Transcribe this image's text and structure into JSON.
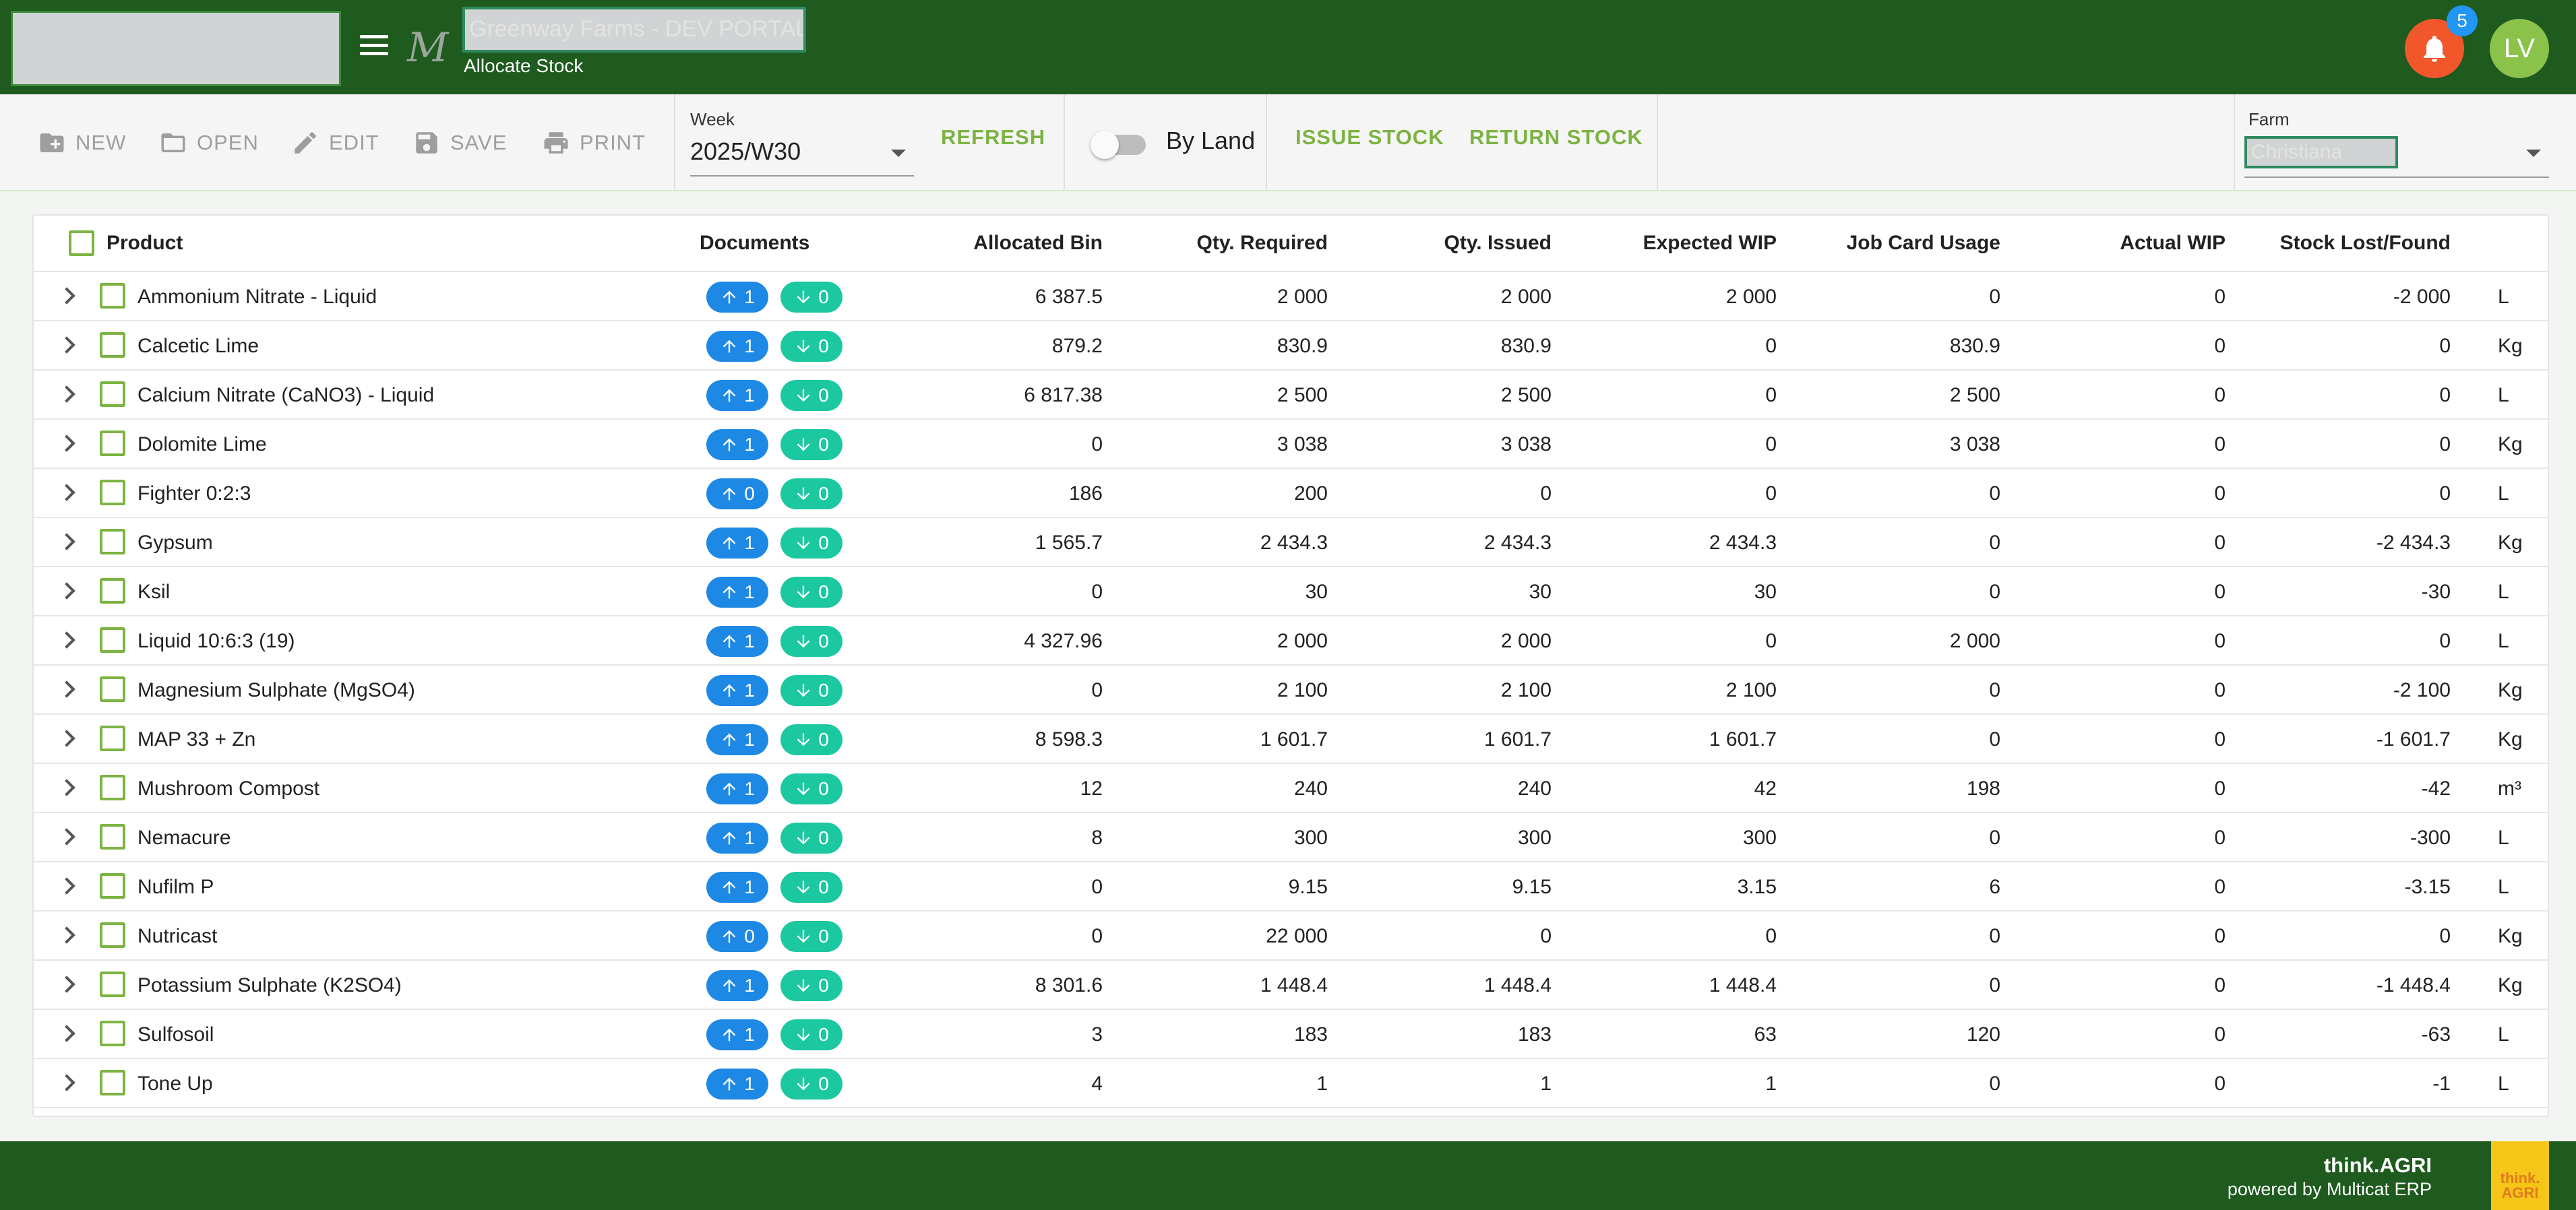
{
  "header": {
    "portal_title": "Greenway Farms - DEV PORTAL",
    "page_subtitle": "Allocate Stock",
    "notification_count": "5",
    "avatar_initials": "LV",
    "m_logo": "M"
  },
  "toolbar": {
    "new_label": "NEW",
    "open_label": "OPEN",
    "edit_label": "EDIT",
    "save_label": "SAVE",
    "print_label": "PRINT",
    "week_label": "Week",
    "week_value": "2025/W30",
    "refresh_label": "REFRESH",
    "by_land_label": "By Land",
    "issue_stock_label": "ISSUE STOCK",
    "return_stock_label": "RETURN STOCK",
    "farm_label": "Farm",
    "farm_value": "Christiana"
  },
  "table": {
    "columns": {
      "product": "Product",
      "documents": "Documents",
      "allocated_bin": "Allocated Bin",
      "qty_required": "Qty. Required",
      "qty_issued": "Qty. Issued",
      "expected_wip": "Expected WIP",
      "job_card_usage": "Job Card Usage",
      "actual_wip": "Actual WIP",
      "stock_lost_found": "Stock Lost/Found"
    },
    "rows": [
      {
        "product": "Ammonium Nitrate - Liquid",
        "up": "1",
        "down": "0",
        "allocated_bin": "6 387.5",
        "qty_required": "2 000",
        "qty_issued": "2 000",
        "expected_wip": "2 000",
        "job_card_usage": "0",
        "actual_wip": "0",
        "stock_lost_found": "-2 000",
        "unit": "L"
      },
      {
        "product": "Calcetic Lime",
        "up": "1",
        "down": "0",
        "allocated_bin": "879.2",
        "qty_required": "830.9",
        "qty_issued": "830.9",
        "expected_wip": "0",
        "job_card_usage": "830.9",
        "actual_wip": "0",
        "stock_lost_found": "0",
        "unit": "Kg"
      },
      {
        "product": "Calcium Nitrate (CaNO3) - Liquid",
        "up": "1",
        "down": "0",
        "allocated_bin": "6 817.38",
        "qty_required": "2 500",
        "qty_issued": "2 500",
        "expected_wip": "0",
        "job_card_usage": "2 500",
        "actual_wip": "0",
        "stock_lost_found": "0",
        "unit": "L"
      },
      {
        "product": "Dolomite Lime",
        "up": "1",
        "down": "0",
        "allocated_bin": "0",
        "qty_required": "3 038",
        "qty_issued": "3 038",
        "expected_wip": "0",
        "job_card_usage": "3 038",
        "actual_wip": "0",
        "stock_lost_found": "0",
        "unit": "Kg"
      },
      {
        "product": "Fighter 0:2:3",
        "up": "0",
        "down": "0",
        "allocated_bin": "186",
        "qty_required": "200",
        "qty_issued": "0",
        "expected_wip": "0",
        "job_card_usage": "0",
        "actual_wip": "0",
        "stock_lost_found": "0",
        "unit": "L"
      },
      {
        "product": "Gypsum",
        "up": "1",
        "down": "0",
        "allocated_bin": "1 565.7",
        "qty_required": "2 434.3",
        "qty_issued": "2 434.3",
        "expected_wip": "2 434.3",
        "job_card_usage": "0",
        "actual_wip": "0",
        "stock_lost_found": "-2 434.3",
        "unit": "Kg"
      },
      {
        "product": "Ksil",
        "up": "1",
        "down": "0",
        "allocated_bin": "0",
        "qty_required": "30",
        "qty_issued": "30",
        "expected_wip": "30",
        "job_card_usage": "0",
        "actual_wip": "0",
        "stock_lost_found": "-30",
        "unit": "L"
      },
      {
        "product": "Liquid 10:6:3 (19)",
        "up": "1",
        "down": "0",
        "allocated_bin": "4 327.96",
        "qty_required": "2 000",
        "qty_issued": "2 000",
        "expected_wip": "0",
        "job_card_usage": "2 000",
        "actual_wip": "0",
        "stock_lost_found": "0",
        "unit": "L"
      },
      {
        "product": "Magnesium Sulphate (MgSO4)",
        "up": "1",
        "down": "0",
        "allocated_bin": "0",
        "qty_required": "2 100",
        "qty_issued": "2 100",
        "expected_wip": "2 100",
        "job_card_usage": "0",
        "actual_wip": "0",
        "stock_lost_found": "-2 100",
        "unit": "Kg"
      },
      {
        "product": "MAP 33 + Zn",
        "up": "1",
        "down": "0",
        "allocated_bin": "8 598.3",
        "qty_required": "1 601.7",
        "qty_issued": "1 601.7",
        "expected_wip": "1 601.7",
        "job_card_usage": "0",
        "actual_wip": "0",
        "stock_lost_found": "-1 601.7",
        "unit": "Kg"
      },
      {
        "product": "Mushroom Compost",
        "up": "1",
        "down": "0",
        "allocated_bin": "12",
        "qty_required": "240",
        "qty_issued": "240",
        "expected_wip": "42",
        "job_card_usage": "198",
        "actual_wip": "0",
        "stock_lost_found": "-42",
        "unit": "m³"
      },
      {
        "product": "Nemacure",
        "up": "1",
        "down": "0",
        "allocated_bin": "8",
        "qty_required": "300",
        "qty_issued": "300",
        "expected_wip": "300",
        "job_card_usage": "0",
        "actual_wip": "0",
        "stock_lost_found": "-300",
        "unit": "L"
      },
      {
        "product": "Nufilm P",
        "up": "1",
        "down": "0",
        "allocated_bin": "0",
        "qty_required": "9.15",
        "qty_issued": "9.15",
        "expected_wip": "3.15",
        "job_card_usage": "6",
        "actual_wip": "0",
        "stock_lost_found": "-3.15",
        "unit": "L"
      },
      {
        "product": "Nutricast",
        "up": "0",
        "down": "0",
        "allocated_bin": "0",
        "qty_required": "22 000",
        "qty_issued": "0",
        "expected_wip": "0",
        "job_card_usage": "0",
        "actual_wip": "0",
        "stock_lost_found": "0",
        "unit": "Kg"
      },
      {
        "product": "Potassium Sulphate (K2SO4)",
        "up": "1",
        "down": "0",
        "allocated_bin": "8 301.6",
        "qty_required": "1 448.4",
        "qty_issued": "1 448.4",
        "expected_wip": "1 448.4",
        "job_card_usage": "0",
        "actual_wip": "0",
        "stock_lost_found": "-1 448.4",
        "unit": "Kg"
      },
      {
        "product": "Sulfosoil",
        "up": "1",
        "down": "0",
        "allocated_bin": "3",
        "qty_required": "183",
        "qty_issued": "183",
        "expected_wip": "63",
        "job_card_usage": "120",
        "actual_wip": "0",
        "stock_lost_found": "-63",
        "unit": "L"
      },
      {
        "product": "Tone Up",
        "up": "1",
        "down": "0",
        "allocated_bin": "4",
        "qty_required": "1",
        "qty_issued": "1",
        "expected_wip": "1",
        "job_card_usage": "0",
        "actual_wip": "0",
        "stock_lost_found": "-1",
        "unit": "L"
      }
    ]
  },
  "footer": {
    "brand": "think.AGRI",
    "powered_by": "powered by Multicat ERP",
    "logo_line1": "think.",
    "logo_line2": "AGRI"
  },
  "colors": {
    "header_bg": "#1f5b1f",
    "accent_green": "#7cb342",
    "notification": "#f2572c",
    "badge_blue": "#2196f3",
    "up_pill": "#1e88e5",
    "down_pill": "#1bc8a0",
    "avatar": "#8bc34a"
  },
  "icons": {
    "menu": "menu-icon",
    "notifications": "bell-icon",
    "new": "add-folder-icon",
    "open": "folder-icon",
    "edit": "pencil-icon",
    "save": "floppy-icon",
    "print": "printer-icon",
    "expand": "chevron-right-icon",
    "up": "arrow-up-icon",
    "down": "arrow-down-icon"
  }
}
